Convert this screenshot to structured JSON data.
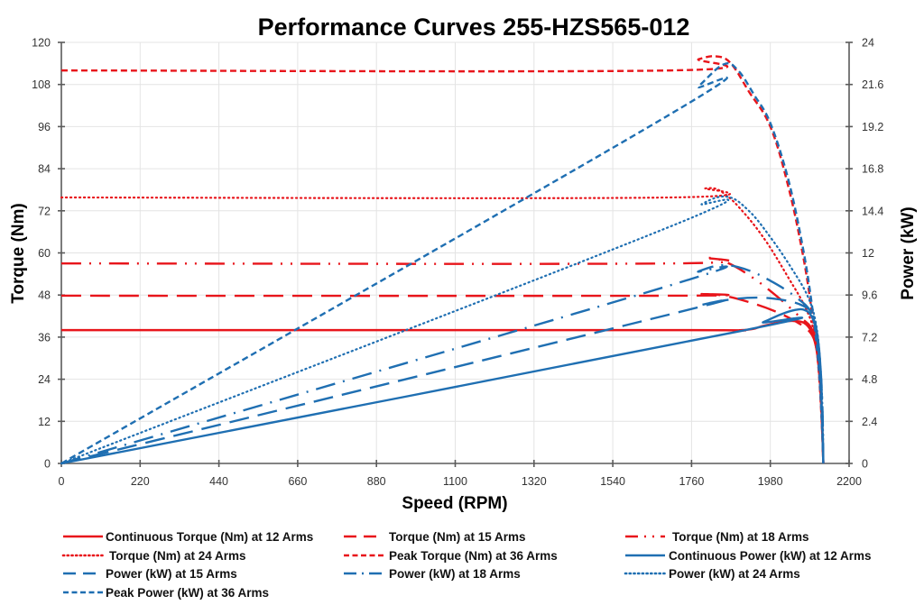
{
  "chart_data": {
    "type": "line",
    "title": "Performance Curves 255-HZS565-012",
    "xlabel": "Speed (RPM)",
    "ylabel": "Torque (Nm)",
    "y2label": "Power (kW)",
    "xlim": [
      0,
      2200
    ],
    "ylim": [
      0,
      120
    ],
    "y2lim": [
      0,
      24
    ],
    "xticks": [
      "0",
      "220",
      "440",
      "660",
      "880",
      "1100",
      "1320",
      "1540",
      "1760",
      "1980",
      "2200"
    ],
    "yticks": [
      "0",
      "12",
      "24",
      "36",
      "48",
      "60",
      "72",
      "84",
      "96",
      "108",
      "120"
    ],
    "y2ticks": [
      "0",
      "2.4",
      "4.8",
      "7.2",
      "9.6",
      "12",
      "14.4",
      "16.8",
      "19.2",
      "21.6",
      "24"
    ],
    "grid": true,
    "legend_position": "bottom",
    "colors": {
      "torque": "#e8151b",
      "power": "#1f6fb2"
    },
    "series": [
      {
        "name": "Continuous Torque (Nm) at 12 Arms",
        "axis": "left",
        "color": "#e8151b",
        "style": "solid",
        "x": [
          0,
          1700,
          1900,
          1960,
          2010,
          2045,
          2075,
          2095,
          2108,
          2118,
          2124,
          2128
        ],
        "y": [
          38,
          38,
          38,
          39.2,
          40.3,
          40.6,
          40,
          37.5,
          33,
          24,
          12,
          0
        ]
      },
      {
        "name": "Torque (Nm) at 15 Arms",
        "axis": "left",
        "color": "#e8151b",
        "style": "longdash",
        "x": [
          0,
          1700,
          1790,
          1850,
          1920,
          1990,
          2050,
          2090,
          2108,
          2118,
          2124,
          2128
        ],
        "y": [
          47.8,
          47.8,
          48.3,
          47.8,
          46,
          43.5,
          40.5,
          37.5,
          33,
          24,
          12,
          0
        ]
      },
      {
        "name": "Torque (Nm) at 18 Arms",
        "axis": "left",
        "color": "#e8151b",
        "style": "dashdotdot",
        "x": [
          0,
          1700,
          1800,
          1860,
          1930,
          2000,
          2060,
          2095,
          2110,
          2119,
          2125,
          2128
        ],
        "y": [
          57,
          57,
          58.6,
          57.2,
          53,
          47.5,
          42,
          38.5,
          33,
          24,
          12,
          0
        ]
      },
      {
        "name": "Torque (Nm) at 24 Arms",
        "axis": "left",
        "color": "#e8151b",
        "style": "dotted",
        "x": [
          0,
          1700,
          1800,
          1850,
          1910,
          1970,
          2030,
          2080,
          2105,
          2118,
          2125,
          2128
        ],
        "y": [
          75.8,
          75.8,
          78.4,
          77,
          71,
          63,
          53,
          44,
          36,
          24,
          12,
          0
        ]
      },
      {
        "name": "Peak Torque (Nm) at 36 Arms",
        "axis": "left",
        "color": "#e8151b",
        "style": "shortdash",
        "x": [
          0,
          1700,
          1780,
          1830,
          1870,
          1920,
          1980,
          2030,
          2070,
          2095,
          2112,
          2122,
          2128
        ],
        "y": [
          112,
          112,
          115.2,
          116,
          114,
          106,
          96,
          79,
          60,
          44,
          30,
          15,
          0
        ]
      },
      {
        "name": "Continuous Power (kW) at 12 Arms",
        "axis": "right",
        "color": "#1f6fb2",
        "style": "solid",
        "x": [
          0,
          1900,
          1960,
          2010,
          2050,
          2075,
          2095,
          2108,
          2118,
          2124,
          2128
        ],
        "y": [
          0,
          7.56,
          8.05,
          8.5,
          8.75,
          8.75,
          8.4,
          7.5,
          5.5,
          3,
          0
        ]
      },
      {
        "name": "Power (kW) at 15 Arms",
        "axis": "right",
        "color": "#1f6fb2",
        "style": "longdash",
        "x": [
          0,
          1700,
          1790,
          1870,
          1950,
          2020,
          2070,
          2098,
          2112,
          2120,
          2125,
          2128
        ],
        "y": [
          0,
          8.5,
          9.05,
          9.35,
          9.45,
          9.3,
          9.0,
          8.5,
          7.2,
          5.5,
          3,
          0
        ]
      },
      {
        "name": "Power (kW) at 18 Arms",
        "axis": "right",
        "color": "#1f6fb2",
        "style": "dashdot",
        "x": [
          0,
          1700,
          1780,
          1850,
          1920,
          1990,
          2050,
          2095,
          2112,
          2121,
          2126,
          2128
        ],
        "y": [
          0,
          10.15,
          10.95,
          11.3,
          11.0,
          10.3,
          9.5,
          8.6,
          7.2,
          5.2,
          2.8,
          0
        ]
      },
      {
        "name": "Power (kW) at 24 Arms",
        "axis": "right",
        "color": "#1f6fb2",
        "style": "dotted",
        "x": [
          0,
          1700,
          1790,
          1860,
          1920,
          1980,
          2040,
          2085,
          2108,
          2120,
          2126,
          2128
        ],
        "y": [
          0,
          13.5,
          14.8,
          15.2,
          14.4,
          12.9,
          11.1,
          9.5,
          7.9,
          5.5,
          2.8,
          0
        ]
      },
      {
        "name": "Peak Power (kW) at 36 Arms",
        "axis": "right",
        "color": "#1f6fb2",
        "style": "shortdash",
        "x": [
          0,
          1700,
          1780,
          1850,
          1890,
          1935,
          1980,
          2030,
          2070,
          2095,
          2112,
          2122,
          2128
        ],
        "y": [
          0,
          19.9,
          21.5,
          22.75,
          22.4,
          21.0,
          19.4,
          16.2,
          12.4,
          9.2,
          6.2,
          3.2,
          0
        ]
      }
    ]
  }
}
